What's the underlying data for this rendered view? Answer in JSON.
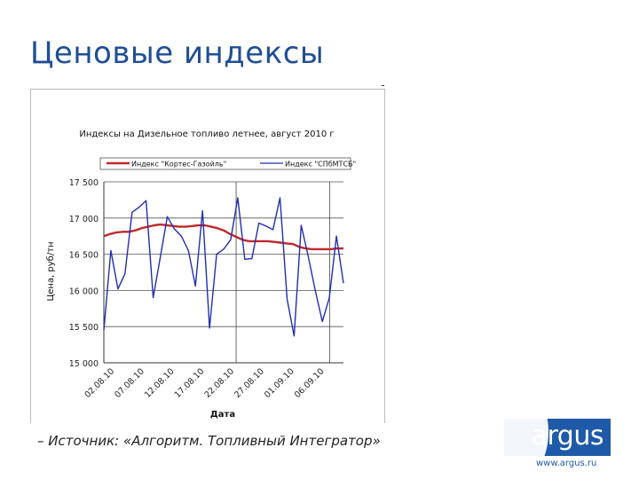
{
  "slide": {
    "title": "Ценовые индексы",
    "source": "– Источник: «Алгоритм. Топливный Интегратор»",
    "logo": {
      "word": "argus",
      "url": "www.argus.ru",
      "color": "#1e5aa8"
    }
  },
  "chart_data": {
    "type": "line",
    "title": "Индексы на Дизельное топливо летнее, август 2010 г",
    "xlabel": "Дата",
    "ylabel": "Цена, руб/тн",
    "ylim": [
      15000,
      17500
    ],
    "y_ticks": [
      "15 000",
      "15 500",
      "16 000",
      "16 500",
      "17 000",
      "17 500"
    ],
    "x_ticks": [
      "02.08.10",
      "07.08.10",
      "12.08.10",
      "17.08.10",
      "22.08.10",
      "27.08.10",
      "01.09.10",
      "06.09.10"
    ],
    "grid": "vertical lines at 22.08.10 and 06.09.10; horizontal lines at each tick",
    "legend_position": "top",
    "series": [
      {
        "name": "Индекс \"Кортес-Газойль\"",
        "color": "#c0282d",
        "values": [
          16750,
          16780,
          16800,
          16810,
          16810,
          16830,
          16860,
          16880,
          16900,
          16910,
          16900,
          16890,
          16880,
          16880,
          16890,
          16900,
          16900,
          16880,
          16860,
          16830,
          16780,
          16740,
          16700,
          16680,
          16680,
          16680,
          16680,
          16670,
          16660,
          16650,
          16640,
          16600,
          16580,
          16570,
          16570,
          16570,
          16570,
          16580,
          16580
        ]
      },
      {
        "name": "Индекс \"СПбМТСБ\"",
        "color": "#1f2fb0",
        "values": [
          15450,
          16550,
          16020,
          16230,
          17080,
          17150,
          17240,
          15900,
          16450,
          17020,
          16850,
          16750,
          16550,
          16060,
          17100,
          15480,
          16500,
          16570,
          16700,
          17280,
          16430,
          16440,
          16930,
          16890,
          16840,
          17280,
          15880,
          15370,
          16900,
          16470,
          16000,
          15570,
          15900,
          16750,
          16100
        ]
      }
    ]
  }
}
